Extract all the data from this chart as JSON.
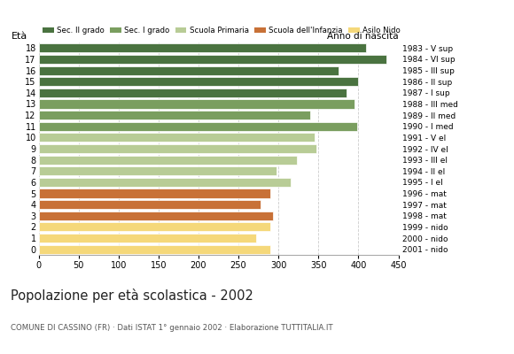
{
  "ages": [
    18,
    17,
    16,
    15,
    14,
    13,
    12,
    11,
    10,
    9,
    8,
    7,
    6,
    5,
    4,
    3,
    2,
    1,
    0
  ],
  "values": [
    410,
    435,
    375,
    400,
    385,
    395,
    340,
    398,
    345,
    348,
    323,
    298,
    315,
    290,
    278,
    293,
    290,
    272,
    290
  ],
  "anno_nascita": [
    "1983 - V sup",
    "1984 - VI sup",
    "1985 - III sup",
    "1986 - II sup",
    "1987 - I sup",
    "1988 - III med",
    "1989 - II med",
    "1990 - I med",
    "1991 - V el",
    "1992 - IV el",
    "1993 - III el",
    "1994 - II el",
    "1995 - I el",
    "1996 - mat",
    "1997 - mat",
    "1998 - mat",
    "1999 - nido",
    "2000 - nido",
    "2001 - nido"
  ],
  "categories": {
    "Sec. II grado": {
      "ages": [
        18,
        17,
        16,
        15,
        14
      ],
      "color": "#4a7340"
    },
    "Sec. I grado": {
      "ages": [
        13,
        12,
        11
      ],
      "color": "#7a9e5f"
    },
    "Scuola Primaria": {
      "ages": [
        10,
        9,
        8,
        7,
        6
      ],
      "color": "#b8cc96"
    },
    "Scuola dell'Infanzia": {
      "ages": [
        5,
        4,
        3
      ],
      "color": "#c87137"
    },
    "Asilo Nido": {
      "ages": [
        2,
        1,
        0
      ],
      "color": "#f5d87a"
    }
  },
  "title": "Popolazione per età scolastica - 2002",
  "subtitle": "COMUNE DI CASSINO (FR) · Dati ISTAT 1° gennaio 2002 · Elaborazione TUTTITALIA.IT",
  "ylabel": "Età",
  "xlim": [
    0,
    450
  ],
  "xticks": [
    0,
    50,
    100,
    150,
    200,
    250,
    300,
    350,
    400,
    450
  ],
  "legend_labels": [
    "Sec. II grado",
    "Sec. I grado",
    "Scuola Primaria",
    "Scuola dell'Infanzia",
    "Asilo Nido"
  ],
  "legend_colors": [
    "#4a7340",
    "#7a9e5f",
    "#b8cc96",
    "#c87137",
    "#f5d87a"
  ],
  "anno_di_nascita_label": "Anno di nascita",
  "bg_color": "#ffffff",
  "grid_color": "#cccccc",
  "bar_height": 0.8,
  "dpi": 100,
  "figsize": [
    5.8,
    4.0
  ]
}
